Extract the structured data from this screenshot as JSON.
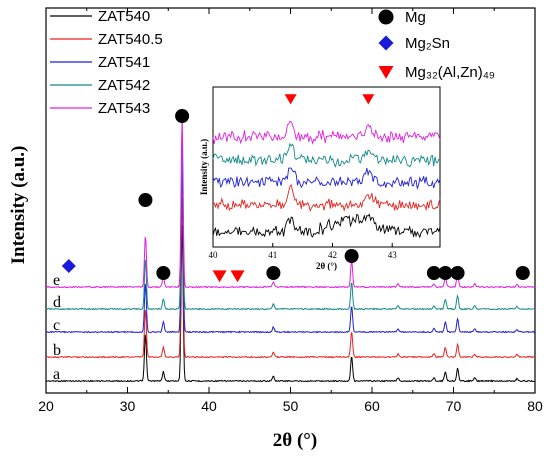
{
  "chart_data": {
    "type": "line",
    "xlabel": "2θ (°)",
    "ylabel": "Intensity (a.u.)",
    "xlim": [
      20,
      80
    ],
    "x_ticks": [
      "20",
      "30",
      "40",
      "50",
      "60",
      "70",
      "80"
    ],
    "series": [
      {
        "name": "ZAT540",
        "label": "a",
        "color": "#000000"
      },
      {
        "name": "ZAT540.5",
        "label": "b",
        "color": "#e8231f"
      },
      {
        "name": "ZAT541",
        "label": "c",
        "color": "#1f1fd6"
      },
      {
        "name": "ZAT542",
        "label": "d",
        "color": "#138a8a"
      },
      {
        "name": "ZAT543",
        "label": "e",
        "color": "#e020e0"
      }
    ],
    "peaks": [
      {
        "x": 32.2,
        "h": 0.3
      },
      {
        "x": 34.4,
        "h": 0.06
      },
      {
        "x": 36.7,
        "h": 1.0
      },
      {
        "x": 47.9,
        "h": 0.03
      },
      {
        "x": 57.5,
        "h": 0.16
      },
      {
        "x": 63.2,
        "h": 0.02
      },
      {
        "x": 67.6,
        "h": 0.02
      },
      {
        "x": 69.0,
        "h": 0.06
      },
      {
        "x": 70.5,
        "h": 0.08
      },
      {
        "x": 72.6,
        "h": 0.02
      },
      {
        "x": 77.8,
        "h": 0.015
      }
    ],
    "phase_legend": [
      {
        "name": "Mg",
        "marker": "circle",
        "color": "#000000"
      },
      {
        "name": "Mg₂Sn",
        "marker": "diamond",
        "color": "#1a1adb"
      },
      {
        "name": "Mg₃₂(Al,Zn)₄₉",
        "marker": "triangle-down",
        "color": "#ff0000"
      }
    ],
    "phase_markers": [
      {
        "phase": "Mg",
        "x": 32.2,
        "level": "high"
      },
      {
        "phase": "Mg",
        "x": 34.4,
        "level": "low"
      },
      {
        "phase": "Mg",
        "x": 36.7,
        "level": "top"
      },
      {
        "phase": "Mg",
        "x": 47.9,
        "level": "low"
      },
      {
        "phase": "Mg",
        "x": 57.5,
        "level": "mid"
      },
      {
        "phase": "Mg",
        "x": 67.6,
        "level": "low"
      },
      {
        "phase": "Mg",
        "x": 69.0,
        "level": "low"
      },
      {
        "phase": "Mg",
        "x": 70.5,
        "level": "low"
      },
      {
        "phase": "Mg",
        "x": 78.5,
        "level": "low"
      },
      {
        "phase": "Mg₂Sn",
        "x": 22.8,
        "level": "low"
      },
      {
        "phase": "Mg₃₂(Al,Zn)₄₉",
        "x": 41.3,
        "level": "low"
      },
      {
        "phase": "Mg₃₂(Al,Zn)₄₉",
        "x": 43.5,
        "level": "low"
      }
    ],
    "inset": {
      "xlabel": "2θ (°)",
      "ylabel": "Intensity (a.u.)",
      "xlim": [
        40,
        43.8
      ],
      "x_ticks": [
        "40",
        "41",
        "42",
        "43"
      ],
      "phase_markers": [
        {
          "phase": "Mg₃₂(Al,Zn)₄₉",
          "x": 41.3
        },
        {
          "phase": "Mg₃₂(Al,Zn)₄₉",
          "x": 42.6
        }
      ]
    }
  }
}
